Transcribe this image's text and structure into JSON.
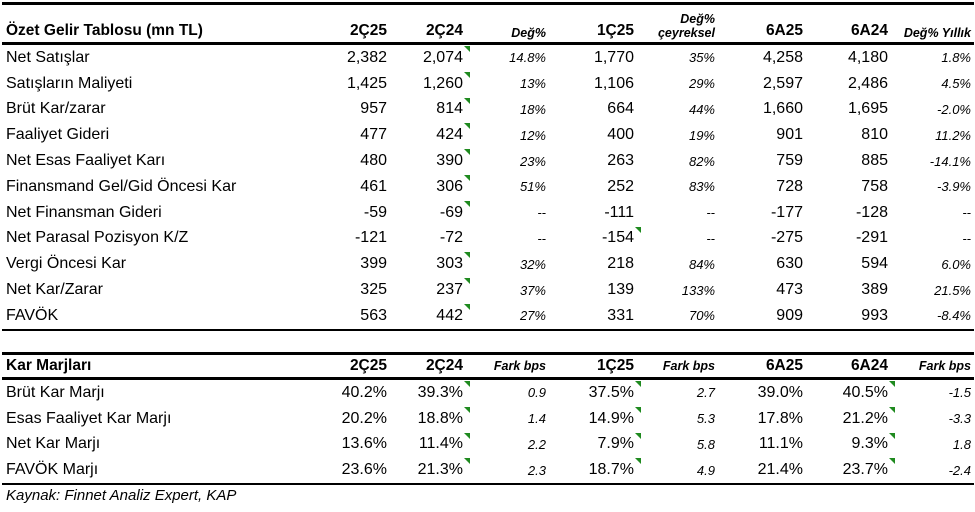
{
  "income": {
    "headers": [
      "Özet Gelir Tablosu (mn TL)",
      "2Ç25",
      "2Ç24",
      "Değ%",
      "1Ç25",
      "Değ% çeyreksel",
      "6A25",
      "6A24",
      "Değ% Yıllık"
    ],
    "rows": [
      {
        "label": "Net Satışlar",
        "values": [
          "2,382",
          "2,074",
          "14.8%",
          "1,770",
          "35%",
          "4,258",
          "4,180",
          "1.8%"
        ],
        "flags": [
          2
        ]
      },
      {
        "label": "Satışların Maliyeti",
        "values": [
          "1,425",
          "1,260",
          "13%",
          "1,106",
          "29%",
          "2,597",
          "2,486",
          "4.5%"
        ],
        "flags": [
          2
        ]
      },
      {
        "label": "Brüt Kar/zarar",
        "values": [
          "957",
          "814",
          "18%",
          "664",
          "44%",
          "1,660",
          "1,695",
          "-2.0%"
        ],
        "flags": [
          2
        ]
      },
      {
        "label": "Faaliyet Gideri",
        "values": [
          "477",
          "424",
          "12%",
          "400",
          "19%",
          "901",
          "810",
          "11.2%"
        ],
        "flags": [
          2
        ]
      },
      {
        "label": "Net Esas Faaliyet Karı",
        "values": [
          "480",
          "390",
          "23%",
          "263",
          "82%",
          "759",
          "885",
          "-14.1%"
        ],
        "flags": [
          2
        ]
      },
      {
        "label": "Finansmand Gel/Gid Öncesi Kar",
        "values": [
          "461",
          "306",
          "51%",
          "252",
          "83%",
          "728",
          "758",
          "-3.9%"
        ],
        "flags": [
          2
        ]
      },
      {
        "label": "Net Finansman Gideri",
        "values": [
          "-59",
          "-69",
          "--",
          "-111",
          "--",
          "-177",
          "-128",
          "--"
        ],
        "flags": [
          2
        ]
      },
      {
        "label": "Net Parasal Pozisyon K/Z",
        "values": [
          "-121",
          "-72",
          "--",
          "-154",
          "--",
          "-275",
          "-291",
          "--"
        ],
        "flags": [
          4
        ]
      },
      {
        "label": "Vergi Öncesi Kar",
        "values": [
          "399",
          "303",
          "32%",
          "218",
          "84%",
          "630",
          "594",
          "6.0%"
        ],
        "flags": [
          2
        ]
      },
      {
        "label": "Net Kar/Zarar",
        "values": [
          "325",
          "237",
          "37%",
          "139",
          "133%",
          "473",
          "389",
          "21.5%"
        ],
        "flags": [
          2
        ]
      },
      {
        "label": "FAVÖK",
        "values": [
          "563",
          "442",
          "27%",
          "331",
          "70%",
          "909",
          "993",
          "-8.4%"
        ],
        "flags": [
          2
        ]
      }
    ]
  },
  "margins": {
    "headers": [
      "Kar Marjları",
      "2Ç25",
      "2Ç24",
      "Fark bps",
      "1Ç25",
      "Fark bps",
      "6A25",
      "6A24",
      "Fark bps"
    ],
    "rows": [
      {
        "label": "Brüt Kar Marjı",
        "values": [
          "40.2%",
          "39.3%",
          "0.9",
          "37.5%",
          "2.7",
          "39.0%",
          "40.5%",
          "-1.5"
        ],
        "flags": [
          2,
          4,
          7
        ]
      },
      {
        "label": "Esas Faaliyet Kar Marjı",
        "values": [
          "20.2%",
          "18.8%",
          "1.4",
          "14.9%",
          "5.3",
          "17.8%",
          "21.2%",
          "-3.3"
        ],
        "flags": [
          2,
          4,
          7
        ]
      },
      {
        "label": "Net Kar Marjı",
        "values": [
          "13.6%",
          "11.4%",
          "2.2",
          "7.9%",
          "5.8",
          "11.1%",
          "9.3%",
          "1.8"
        ],
        "flags": [
          2,
          4,
          7
        ]
      },
      {
        "label": "FAVÖK Marjı",
        "values": [
          "23.6%",
          "21.3%",
          "2.3",
          "18.7%",
          "4.9",
          "21.4%",
          "23.7%",
          "-2.4"
        ],
        "flags": [
          2,
          4,
          7
        ]
      }
    ]
  },
  "source": "Kaynak: Finnet Analiz Expert, KAP",
  "colors": {
    "comment_marker": "#1f8a1f"
  }
}
